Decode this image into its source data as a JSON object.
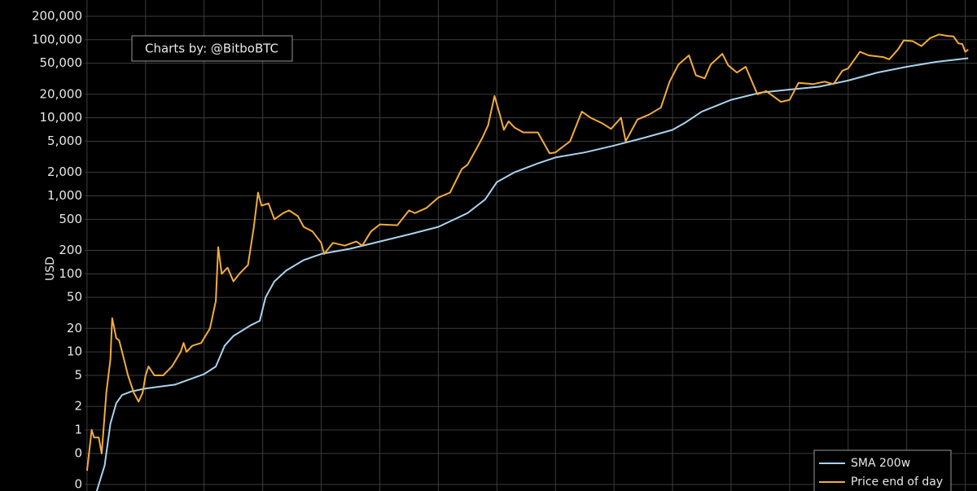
{
  "chart_data": {
    "type": "line",
    "y_label": "USD",
    "annotation": "Charts by: @BitboBTC",
    "log_y": true,
    "grid": true,
    "legend_position": "bottom-right",
    "xlim": [
      2010.96,
      2026.2
    ],
    "xticks": [
      2011,
      2012,
      2013,
      2014,
      2015,
      2016,
      2017,
      2018,
      2019,
      2020,
      2021,
      2022,
      2023,
      2024,
      2025,
      2026
    ],
    "ylim": [
      0.165,
      323000
    ],
    "yticks": [
      {
        "value": 0.2,
        "label": "0"
      },
      {
        "value": 0.5,
        "label": "0"
      },
      1,
      2,
      5,
      10,
      20,
      50,
      100,
      200,
      500,
      {
        "value": 1000,
        "label": "1,000"
      },
      {
        "value": 2000,
        "label": "2,000"
      },
      {
        "value": 5000,
        "label": "5,000"
      },
      {
        "value": 10000,
        "label": "10,000"
      },
      {
        "value": 20000,
        "label": "20,000"
      },
      {
        "value": 50000,
        "label": "50,000"
      },
      {
        "value": 100000,
        "label": "100,000"
      },
      {
        "value": 200000,
        "label": "200,000"
      }
    ],
    "series": [
      {
        "name": "SMA 200w",
        "color": "#a9d3ee",
        "x": [
          2011.15,
          2011.2,
          2011.3,
          2011.4,
          2011.5,
          2011.6,
          2011.75,
          2012.0,
          2012.5,
          2013.0,
          2013.2,
          2013.35,
          2013.5,
          2013.8,
          2013.95,
          2014.05,
          2014.2,
          2014.4,
          2014.7,
          2015.0,
          2015.5,
          2016.0,
          2016.5,
          2017.0,
          2017.5,
          2017.8,
          2018.0,
          2018.3,
          2018.7,
          2019.0,
          2019.5,
          2020.0,
          2020.5,
          2021.0,
          2021.2,
          2021.5,
          2022.0,
          2022.5,
          2023.0,
          2023.5,
          2024.0,
          2024.5,
          2025.0,
          2025.5,
          2026.05
        ],
        "values": [
          0.15,
          0.2,
          0.35,
          1.2,
          2.2,
          2.8,
          3.1,
          3.4,
          3.8,
          5.2,
          6.5,
          12,
          16,
          22,
          25,
          50,
          80,
          110,
          150,
          180,
          210,
          260,
          320,
          400,
          600,
          900,
          1500,
          2000,
          2600,
          3100,
          3600,
          4400,
          5500,
          7000,
          8500,
          12000,
          17000,
          21000,
          23000,
          25000,
          30000,
          38000,
          45000,
          52000,
          58000
        ]
      },
      {
        "name": "Price end of day",
        "color": "#f2ac3a",
        "x": [
          2011.0,
          2011.08,
          2011.12,
          2011.2,
          2011.25,
          2011.33,
          2011.4,
          2011.43,
          2011.5,
          2011.55,
          2011.6,
          2011.7,
          2011.8,
          2011.88,
          2011.95,
          2012.0,
          2012.05,
          2012.15,
          2012.3,
          2012.45,
          2012.6,
          2012.65,
          2012.7,
          2012.8,
          2012.95,
          2013.1,
          2013.2,
          2013.24,
          2013.3,
          2013.4,
          2013.5,
          2013.6,
          2013.75,
          2013.85,
          2013.92,
          2013.98,
          2014.1,
          2014.2,
          2014.35,
          2014.45,
          2014.6,
          2014.7,
          2014.85,
          2015.0,
          2015.05,
          2015.2,
          2015.4,
          2015.6,
          2015.7,
          2015.85,
          2016.0,
          2016.3,
          2016.5,
          2016.6,
          2016.8,
          2017.0,
          2017.2,
          2017.4,
          2017.5,
          2017.65,
          2017.75,
          2017.85,
          2017.96,
          2018.05,
          2018.12,
          2018.2,
          2018.3,
          2018.45,
          2018.7,
          2018.9,
          2019.0,
          2019.25,
          2019.45,
          2019.6,
          2019.8,
          2019.95,
          2020.12,
          2020.2,
          2020.4,
          2020.6,
          2020.8,
          2020.95,
          2021.1,
          2021.28,
          2021.4,
          2021.55,
          2021.65,
          2021.85,
          2021.95,
          2022.1,
          2022.25,
          2022.45,
          2022.6,
          2022.85,
          2023.0,
          2023.15,
          2023.4,
          2023.6,
          2023.75,
          2023.9,
          2024.0,
          2024.2,
          2024.35,
          2024.6,
          2024.7,
          2024.85,
          2024.95,
          2025.1,
          2025.25,
          2025.4,
          2025.55,
          2025.7,
          2025.8,
          2025.88,
          2025.95,
          2026.0,
          2026.05
        ],
        "values": [
          0.3,
          1.0,
          0.8,
          0.8,
          0.5,
          3,
          8,
          27,
          15,
          14,
          10,
          5,
          3,
          2.3,
          3,
          5,
          6.5,
          5,
          5,
          6.5,
          10,
          13,
          10,
          12,
          13,
          20,
          45,
          220,
          100,
          120,
          80,
          100,
          130,
          400,
          1100,
          750,
          800,
          500,
          600,
          650,
          550,
          400,
          350,
          250,
          180,
          250,
          230,
          260,
          230,
          350,
          430,
          420,
          650,
          600,
          700,
          950,
          1100,
          2200,
          2500,
          4000,
          5500,
          8000,
          19000,
          11000,
          7000,
          9000,
          7500,
          6500,
          6500,
          3500,
          3600,
          5000,
          12000,
          10000,
          8500,
          7200,
          10000,
          5000,
          9500,
          11000,
          13500,
          29000,
          48000,
          63000,
          35000,
          32000,
          48000,
          66000,
          47000,
          38000,
          45000,
          20000,
          22000,
          16000,
          17000,
          28000,
          27000,
          29000,
          27000,
          40000,
          43000,
          70000,
          63000,
          60000,
          56000,
          75000,
          98000,
          96000,
          83000,
          105000,
          117000,
          112000,
          110000,
          90000,
          88000,
          70000,
          75000
        ]
      }
    ]
  }
}
